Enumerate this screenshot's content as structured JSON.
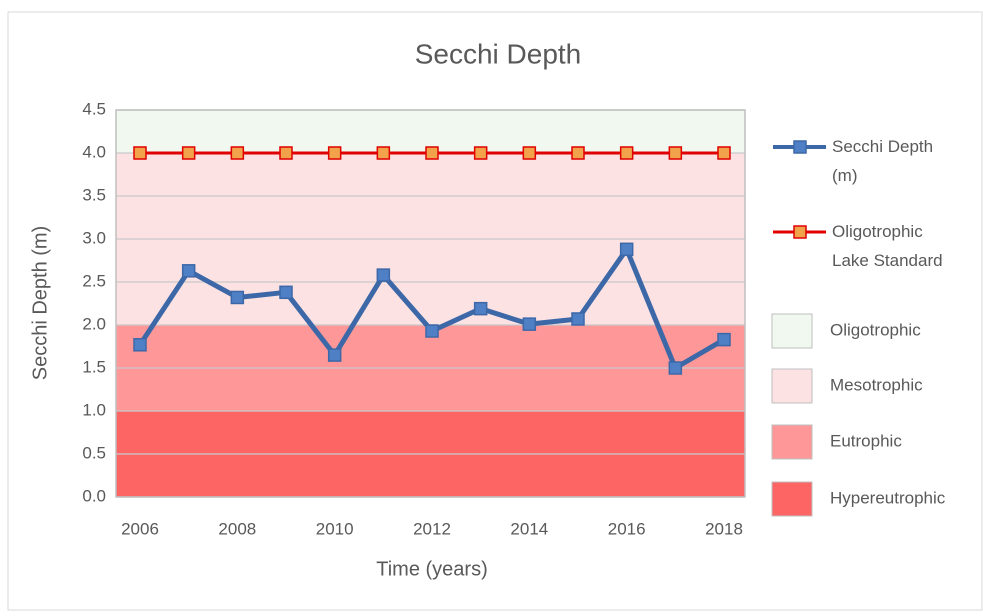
{
  "chart_data": {
    "type": "line",
    "title": "Secchi Depth",
    "x_label": "Time (years)",
    "y_label": "Secchi Depth (m)",
    "categories": [
      "2006",
      null,
      "2008",
      null,
      "2010",
      null,
      "2012",
      null,
      "2014",
      null,
      "2016",
      null,
      "2018"
    ],
    "series": [
      {
        "name": "Secchi Depth (m)",
        "color": "#3d68a8",
        "marker_color": "#4f7fc4",
        "values": [
          1.77,
          2.63,
          2.32,
          2.38,
          1.65,
          2.58,
          1.93,
          2.19,
          2.01,
          2.07,
          2.88,
          1.5,
          1.83
        ]
      },
      {
        "name": "Oligotrophic Lake Standard",
        "color": "#e00000",
        "marker_color": "#f2a24a",
        "values": [
          4.0,
          4.0,
          4.0,
          4.0,
          4.0,
          4.0,
          4.0,
          4.0,
          4.0,
          4.0,
          4.0,
          4.0,
          4.0
        ]
      }
    ],
    "zones": [
      {
        "name": "Oligotrophic",
        "from": 4.0,
        "to": 4.5,
        "color": "#f1f8ef"
      },
      {
        "name": "Mesotrophic",
        "from": 2.0,
        "to": 4.0,
        "color": "#fde2e4"
      },
      {
        "name": "Eutrophic",
        "from": 1.0,
        "to": 2.0,
        "color": "#fe9898"
      },
      {
        "name": "Hypereutrophic",
        "from": 0.0,
        "to": 1.0,
        "color": "#fd6464"
      }
    ],
    "ylim": [
      0,
      4.5
    ],
    "yticks": [
      {
        "value": 0,
        "label": "0.0"
      },
      0.5,
      {
        "value": 1,
        "label": "1.0"
      },
      1.5,
      {
        "value": 2,
        "label": "2.0"
      },
      2.5,
      {
        "value": 3,
        "label": "3.0"
      },
      3.5,
      {
        "value": 4,
        "label": "4.0"
      },
      4.5
    ],
    "grid": true
  }
}
